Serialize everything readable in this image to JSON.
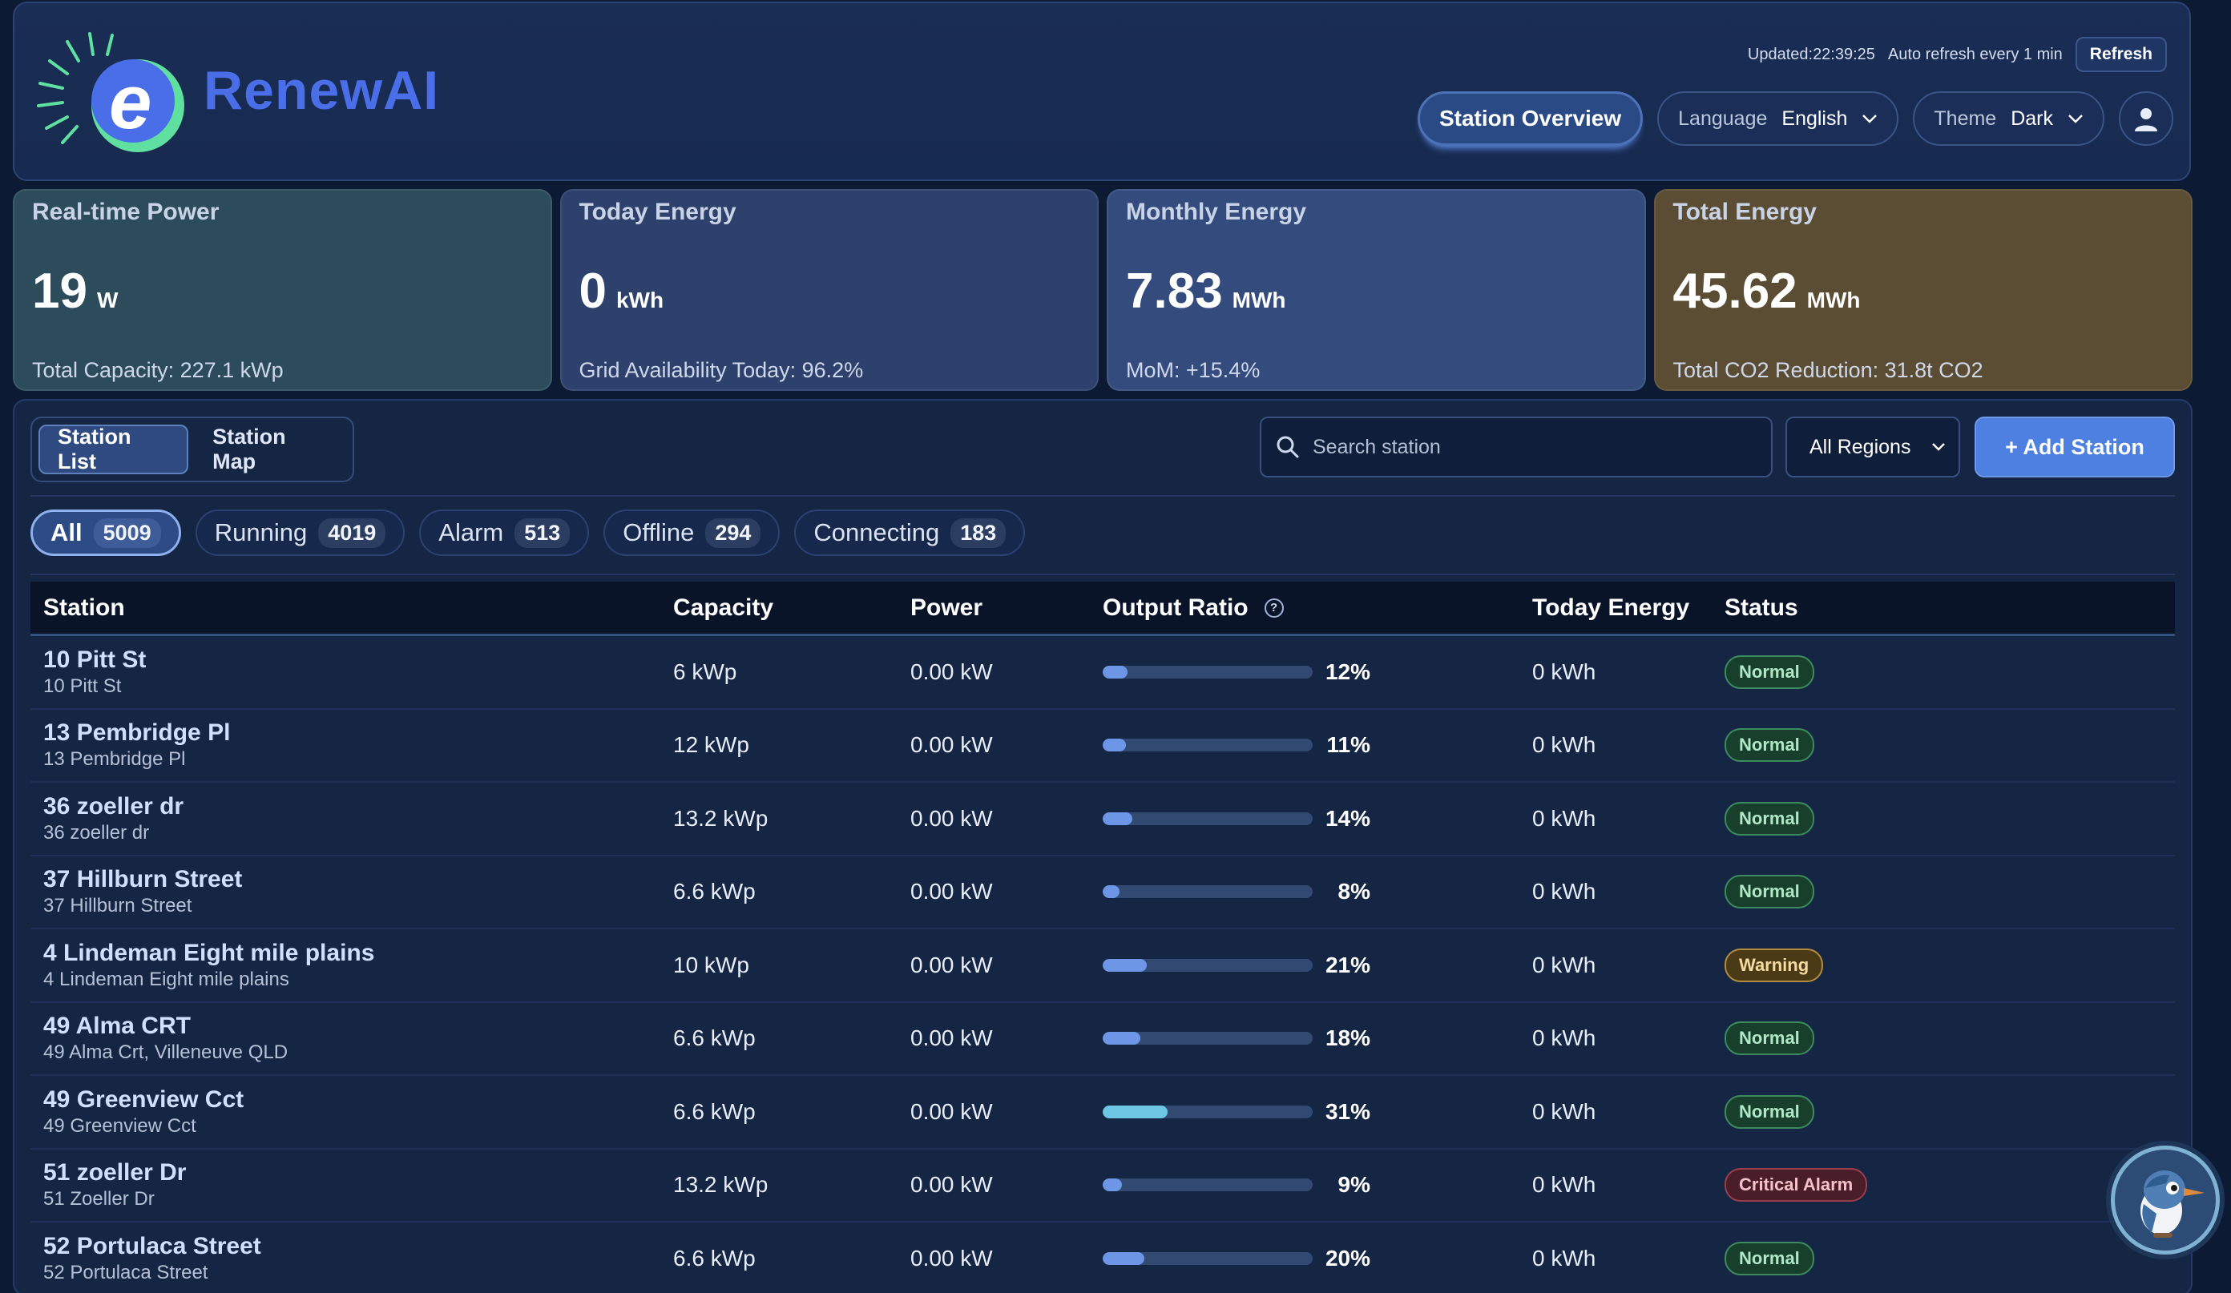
{
  "app": {
    "name": "RenewAI"
  },
  "header": {
    "updated_label": "Updated:22:39:25",
    "auto_refresh": "Auto refresh every 1 min",
    "refresh_label": "Refresh",
    "overview_label": "Station Overview",
    "language_label": "Language",
    "language_value": "English",
    "theme_label": "Theme",
    "theme_value": "Dark"
  },
  "stats": [
    {
      "title": "Real-time Power",
      "value": "19",
      "unit": "W",
      "foot": "Total Capacity: 227.1 kWp",
      "color": "#2d4c5b"
    },
    {
      "title": "Today Energy",
      "value": "0",
      "unit": "kWh",
      "foot": "Grid Availability Today: 96.2%",
      "color": "#2d416c"
    },
    {
      "title": "Monthly Energy",
      "value": "7.83",
      "unit": "MWh",
      "foot": "MoM: +15.4%",
      "color": "#344b7d"
    },
    {
      "title": "Total Energy",
      "value": "45.62",
      "unit": "MWh",
      "foot": "Total CO2 Reduction: 31.8t CO2",
      "color": "#5b4d33"
    }
  ],
  "toolbar": {
    "tab_list": "Station List",
    "tab_map": "Station Map",
    "search_placeholder": "Search station",
    "region_value": "All Regions",
    "add_label": "+ Add Station"
  },
  "filters": [
    {
      "label": "All",
      "count": "5009"
    },
    {
      "label": "Running",
      "count": "4019"
    },
    {
      "label": "Alarm",
      "count": "513"
    },
    {
      "label": "Offline",
      "count": "294"
    },
    {
      "label": "Connecting",
      "count": "183"
    }
  ],
  "table": {
    "headers": {
      "station": "Station",
      "capacity": "Capacity",
      "power": "Power",
      "ratio": "Output Ratio",
      "today": "Today Energy",
      "status": "Status"
    },
    "rows": [
      {
        "name": "10 Pitt St",
        "address": "10 Pitt St",
        "capacity": "6 kWp",
        "power": "0.00 kW",
        "ratio": 12,
        "ratio_label": "12%",
        "today": "0 kWh",
        "status": "Normal",
        "status_type": "normal"
      },
      {
        "name": "13 Pembridge Pl",
        "address": "13 Pembridge Pl",
        "capacity": "12 kWp",
        "power": "0.00 kW",
        "ratio": 11,
        "ratio_label": "11%",
        "today": "0 kWh",
        "status": "Normal",
        "status_type": "normal"
      },
      {
        "name": "36 zoeller dr",
        "address": "36 zoeller dr",
        "capacity": "13.2 kWp",
        "power": "0.00 kW",
        "ratio": 14,
        "ratio_label": "14%",
        "today": "0 kWh",
        "status": "Normal",
        "status_type": "normal"
      },
      {
        "name": "37 Hillburn Street",
        "address": "37 Hillburn Street",
        "capacity": "6.6 kWp",
        "power": "0.00 kW",
        "ratio": 8,
        "ratio_label": "8%",
        "today": "0 kWh",
        "status": "Normal",
        "status_type": "normal"
      },
      {
        "name": "4 Lindeman Eight mile plains",
        "address": "4 Lindeman Eight mile plains",
        "capacity": "10 kWp",
        "power": "0.00 kW",
        "ratio": 21,
        "ratio_label": "21%",
        "today": "0 kWh",
        "status": "Warning",
        "status_type": "warning"
      },
      {
        "name": "49 Alma CRT",
        "address": "49 Alma Crt, Villeneuve QLD",
        "capacity": "6.6 kWp",
        "power": "0.00 kW",
        "ratio": 18,
        "ratio_label": "18%",
        "today": "0 kWh",
        "status": "Normal",
        "status_type": "normal"
      },
      {
        "name": "49 Greenview Cct",
        "address": "49 Greenview Cct",
        "capacity": "6.6 kWp",
        "power": "0.00 kW",
        "ratio": 31,
        "ratio_label": "31%",
        "today": "0 kWh",
        "status": "Normal",
        "status_type": "normal"
      },
      {
        "name": "51 zoeller Dr",
        "address": "51 Zoeller Dr",
        "capacity": "13.2 kWp",
        "power": "0.00 kW",
        "ratio": 9,
        "ratio_label": "9%",
        "today": "0 kWh",
        "status": "Critical Alarm",
        "status_type": "critical"
      },
      {
        "name": "52 Portulaca Street",
        "address": "52 Portulaca Street",
        "capacity": "6.6 kWp",
        "power": "0.00 kW",
        "ratio": 20,
        "ratio_label": "20%",
        "today": "0 kWh",
        "status": "Normal",
        "status_type": "normal"
      }
    ]
  },
  "colors": {
    "accent": "#4d80e0",
    "brand": "#4a6ee8",
    "bar_fill": "#6d97e6",
    "bar_fill_high": "#6cc6e4"
  }
}
